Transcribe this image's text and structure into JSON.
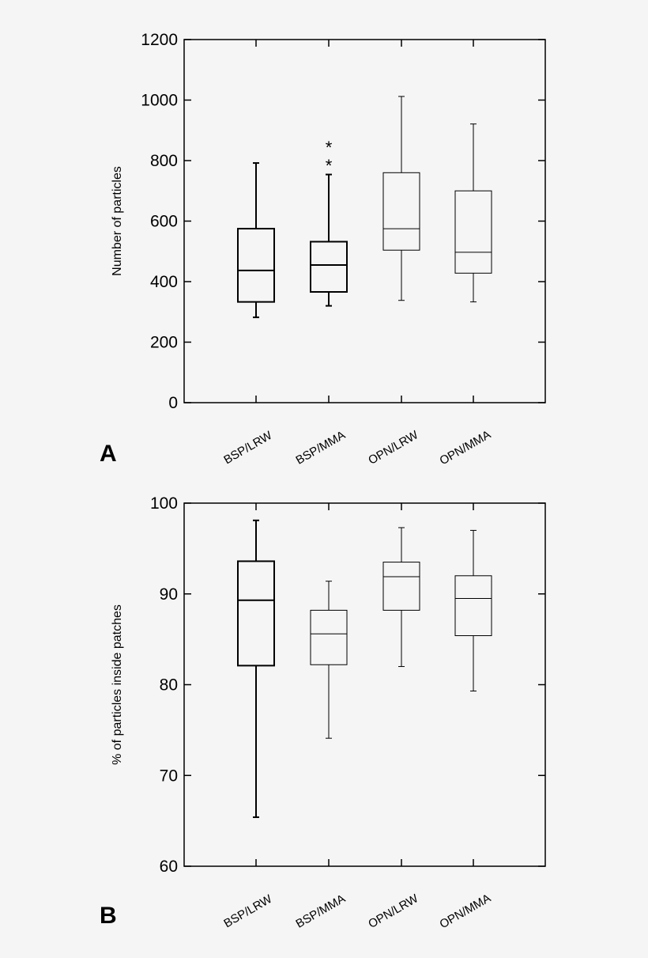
{
  "chart_data": [
    {
      "type": "box",
      "panel": "A",
      "ylabel": "Number of particles",
      "ylim": [
        0,
        1200
      ],
      "yticks": [
        0,
        200,
        400,
        600,
        800,
        1000,
        1200
      ],
      "categories": [
        "BSP/LRW",
        "BSP/MMA",
        "OPN/LRW",
        "OPN/MMA"
      ],
      "boxes": [
        {
          "min": 282,
          "q1": 333,
          "median": 437,
          "q3": 575,
          "max": 792
        },
        {
          "min": 320,
          "q1": 366,
          "median": 455,
          "q3": 532,
          "max": 754,
          "outliers": [
            800,
            860
          ]
        },
        {
          "min": 338,
          "q1": 504,
          "median": 575,
          "q3": 760,
          "max": 1012
        },
        {
          "min": 333,
          "q1": 428,
          "median": 497,
          "q3": 700,
          "max": 921
        }
      ]
    },
    {
      "type": "box",
      "panel": "B",
      "ylabel": "% of particles inside patches",
      "ylim": [
        60,
        100
      ],
      "yticks": [
        60,
        70,
        80,
        90,
        100
      ],
      "categories": [
        "BSP/LRW",
        "BSP/MMA",
        "OPN/LRW",
        "OPN/MMA"
      ],
      "boxes": [
        {
          "min": 65.4,
          "q1": 82.1,
          "median": 89.3,
          "q3": 93.6,
          "max": 98.1
        },
        {
          "min": 74.1,
          "q1": 82.2,
          "median": 85.6,
          "q3": 88.2,
          "max": 91.4
        },
        {
          "min": 82.0,
          "q1": 88.2,
          "median": 91.9,
          "q3": 93.5,
          "max": 97.3
        },
        {
          "min": 79.3,
          "q1": 85.4,
          "median": 89.5,
          "q3": 92.0,
          "max": 97.0
        }
      ]
    }
  ]
}
